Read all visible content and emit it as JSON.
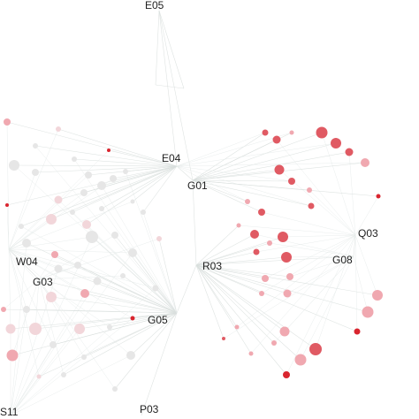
{
  "hubs": [
    {
      "id": "E05",
      "label": "E05"
    },
    {
      "id": "E04",
      "label": "E04"
    },
    {
      "id": "G01",
      "label": "G01"
    },
    {
      "id": "Q03",
      "label": "Q03"
    },
    {
      "id": "G08",
      "label": "G08"
    },
    {
      "id": "R03",
      "label": "R03"
    },
    {
      "id": "W04",
      "label": "W04"
    },
    {
      "id": "G03",
      "label": "G03"
    },
    {
      "id": "G05",
      "label": "G05"
    },
    {
      "id": "S11",
      "label": "S11"
    },
    {
      "id": "P03",
      "label": "P03"
    }
  ],
  "colors": {
    "edge": "#d9dfdd",
    "node_light": "#f2d6da",
    "node_pink": "#f0a8b0",
    "node_red": "#e05a63",
    "node_dark_red": "#d9252f",
    "node_gray": "#e6e6e6",
    "label": "#1f1f1f"
  }
}
